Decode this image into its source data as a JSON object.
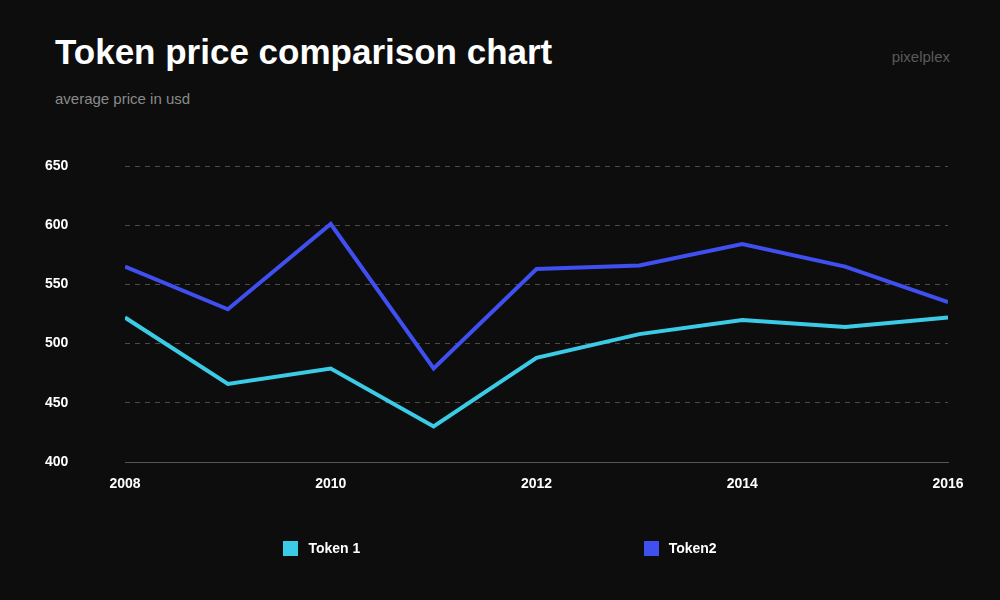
{
  "chart_data": {
    "type": "line",
    "title": "Token price comparison chart",
    "subtitle": "average price in usd",
    "annotations": [
      "pixelplex"
    ],
    "x": [
      2008,
      2009,
      2010,
      2011,
      2012,
      2013,
      2014,
      2015,
      2016
    ],
    "xlim": [
      2008,
      2016
    ],
    "xticks": [
      2008,
      2010,
      2012,
      2014,
      2016
    ],
    "ylim": [
      400,
      650
    ],
    "yticks": [
      400,
      450,
      500,
      550,
      600,
      650
    ],
    "grid": true,
    "legend": "bottom",
    "series": [
      {
        "name": "Token 1",
        "color": "#3ccbe6",
        "values": [
          522,
          466,
          479,
          430,
          488,
          508,
          520,
          514,
          522
        ]
      },
      {
        "name": "Token2",
        "color": "#3f4ff0",
        "values": [
          565,
          529,
          601,
          479,
          563,
          566,
          584,
          565,
          535
        ]
      }
    ]
  }
}
